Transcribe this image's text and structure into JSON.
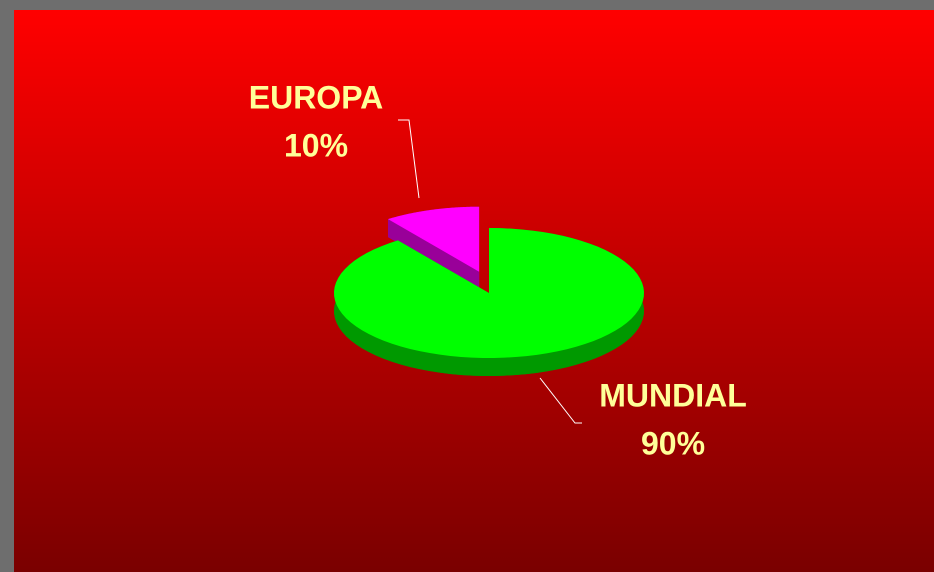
{
  "chart_data": {
    "type": "pie3d",
    "categories": [
      "EUROPA",
      "MUNDIAL"
    ],
    "values": [
      10,
      90
    ],
    "value_labels": [
      "10%",
      "90%"
    ],
    "colors": [
      "#ff00ff",
      "#00ff00"
    ]
  }
}
